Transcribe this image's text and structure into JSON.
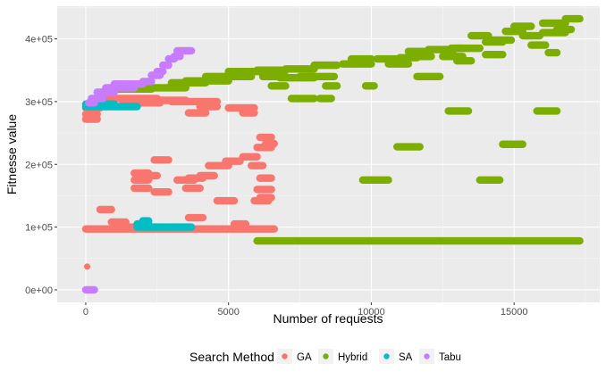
{
  "chart_data": {
    "type": "scatter",
    "title": "",
    "xlabel": "Number of requests",
    "ylabel": "Fitnesse value",
    "xlim": [
      -1000,
      18000
    ],
    "ylim": [
      -20000,
      452000
    ],
    "x_ticks": [
      {
        "value": 0,
        "label": "0"
      },
      {
        "value": 5000,
        "label": "5000"
      },
      {
        "value": 10000,
        "label": "10000"
      },
      {
        "value": 15000,
        "label": "15000"
      }
    ],
    "y_ticks": [
      {
        "value": 0,
        "label": "0e+00"
      },
      {
        "value": 100000,
        "label": "1e+05"
      },
      {
        "value": 200000,
        "label": "2e+05"
      },
      {
        "value": 300000,
        "label": "3e+05"
      },
      {
        "value": 400000,
        "label": "4e+05"
      }
    ],
    "grid": true,
    "legend": {
      "title": "Search Method",
      "position": "bottom",
      "entries": [
        {
          "name": "GA",
          "color": "#F8766D"
        },
        {
          "name": "Hybrid",
          "color": "#7CAE00"
        },
        {
          "name": "SA",
          "color": "#00BFC4"
        },
        {
          "name": "Tabu",
          "color": "#C77CFF"
        }
      ]
    },
    "series": [
      {
        "name": "GA",
        "color": "#F8766D",
        "points": [
          [
            50,
            37000
          ]
        ],
        "segments": [
          [
            0,
            400,
            272000
          ],
          [
            0,
            400,
            280000
          ],
          [
            0,
            500,
            290000
          ],
          [
            0,
            6600,
            97000
          ],
          [
            900,
            1400,
            108000
          ],
          [
            1400,
            2200,
            100000
          ],
          [
            500,
            900,
            128000
          ],
          [
            800,
            2500,
            305000
          ],
          [
            1300,
            2600,
            298000
          ],
          [
            2300,
            3500,
            302000
          ],
          [
            3000,
            4600,
            300000
          ],
          [
            3600,
            4200,
            282000
          ],
          [
            4000,
            4600,
            292000
          ],
          [
            5000,
            5900,
            290000
          ],
          [
            5500,
            5900,
            282000
          ],
          [
            1700,
            2200,
            186000
          ],
          [
            1700,
            2200,
            175000
          ],
          [
            1700,
            2200,
            162000
          ],
          [
            2000,
            2500,
            182000
          ],
          [
            2400,
            2900,
            207000
          ],
          [
            2400,
            2900,
            156000
          ],
          [
            3200,
            3800,
            175000
          ],
          [
            3600,
            4100,
            178000
          ],
          [
            3500,
            4000,
            162000
          ],
          [
            3600,
            4100,
            115000
          ],
          [
            4000,
            4500,
            182000
          ],
          [
            4300,
            5000,
            198000
          ],
          [
            4900,
            5400,
            205000
          ],
          [
            5500,
            6000,
            212000
          ],
          [
            5800,
            6200,
            198000
          ],
          [
            6000,
            6500,
            227000
          ],
          [
            6100,
            6500,
            243000
          ],
          [
            6300,
            6600,
            233000
          ],
          [
            6100,
            6500,
            178000
          ],
          [
            6000,
            6500,
            160000
          ],
          [
            6100,
            6500,
            147000
          ],
          [
            5900,
            6400,
            142000
          ],
          [
            4600,
            5200,
            142000
          ],
          [
            5200,
            5600,
            105000
          ]
        ]
      },
      {
        "name": "Hybrid",
        "color": "#7CAE00",
        "points": [],
        "segments": [
          [
            6000,
            17300,
            78000
          ],
          [
            9700,
            10600,
            175000
          ],
          [
            10900,
            11700,
            228000
          ],
          [
            12700,
            13400,
            285000
          ],
          [
            13800,
            14500,
            175000
          ],
          [
            14600,
            15300,
            232000
          ],
          [
            15800,
            16500,
            285000
          ],
          [
            9800,
            10100,
            325000
          ],
          [
            1000,
            2300,
            320000
          ],
          [
            2000,
            3500,
            322000
          ],
          [
            3000,
            4200,
            330000
          ],
          [
            3500,
            5000,
            333000
          ],
          [
            4200,
            5800,
            340000
          ],
          [
            5000,
            6500,
            348000
          ],
          [
            6000,
            7000,
            350000
          ],
          [
            6200,
            7000,
            340000
          ],
          [
            6500,
            7000,
            325000
          ],
          [
            6800,
            8000,
            338000
          ],
          [
            7000,
            8000,
            352000
          ],
          [
            7200,
            8000,
            305000
          ],
          [
            7500,
            8000,
            340000
          ],
          [
            8000,
            8800,
            358000
          ],
          [
            8000,
            8700,
            340000
          ],
          [
            8400,
            8800,
            325000
          ],
          [
            8200,
            8600,
            305000
          ],
          [
            9000,
            10000,
            360000
          ],
          [
            9300,
            10000,
            368000
          ],
          [
            10200,
            11000,
            368000
          ],
          [
            10600,
            11300,
            360000
          ],
          [
            11300,
            12000,
            380000
          ],
          [
            11600,
            12100,
            372000
          ],
          [
            11600,
            12400,
            340000
          ],
          [
            12000,
            12900,
            383000
          ],
          [
            12500,
            13200,
            372000
          ],
          [
            12800,
            13200,
            385000
          ],
          [
            13000,
            13500,
            365000
          ],
          [
            13000,
            13800,
            385000
          ],
          [
            13500,
            14100,
            405000
          ],
          [
            14000,
            14600,
            395000
          ],
          [
            14300,
            14600,
            375000
          ],
          [
            14200,
            14900,
            398000
          ],
          [
            14700,
            15300,
            412000
          ],
          [
            15300,
            15900,
            405000
          ],
          [
            15000,
            15600,
            420000
          ],
          [
            16000,
            16800,
            410000
          ],
          [
            16000,
            16800,
            425000
          ],
          [
            16500,
            17000,
            415000
          ],
          [
            16200,
            16500,
            378000
          ],
          [
            16800,
            17300,
            432000
          ],
          [
            15600,
            16100,
            390000
          ],
          [
            14000,
            14300,
            375000
          ],
          [
            11000,
            11600,
            370000
          ]
        ]
      },
      {
        "name": "SA",
        "color": "#00BFC4",
        "points": [],
        "segments": [
          [
            0,
            1800,
            292000
          ],
          [
            0,
            1000,
            296000
          ],
          [
            1800,
            3700,
            100000
          ],
          [
            1800,
            2200,
            105000
          ],
          [
            2000,
            2200,
            110000
          ]
        ]
      },
      {
        "name": "Tabu",
        "color": "#C77CFF",
        "points": [],
        "segments": [
          [
            0,
            300,
            0
          ],
          [
            100,
            300,
            298000
          ],
          [
            200,
            600,
            305000
          ],
          [
            400,
            1000,
            315000
          ],
          [
            700,
            1700,
            322000
          ],
          [
            1000,
            2000,
            328000
          ],
          [
            2000,
            2300,
            332000
          ],
          [
            2300,
            2600,
            342000
          ],
          [
            2500,
            2700,
            348000
          ],
          [
            2700,
            2900,
            358000
          ],
          [
            2900,
            3100,
            368000
          ],
          [
            3100,
            3300,
            372000
          ],
          [
            3200,
            3700,
            381000
          ]
        ]
      }
    ]
  }
}
